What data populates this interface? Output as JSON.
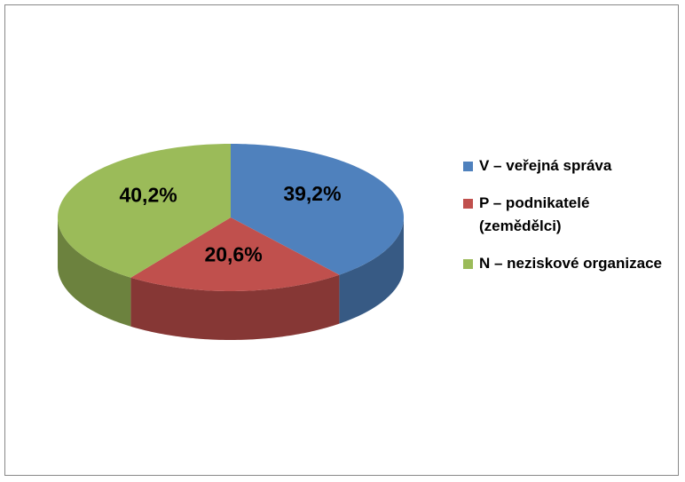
{
  "chart_data": {
    "type": "pie",
    "categories": [
      "V – veřejná správa",
      "P – podnikatelé (zemědělci)",
      "N – neziskové organizace"
    ],
    "values": [
      39.2,
      20.6,
      40.2
    ],
    "value_labels": [
      "39,2%",
      "20,6%",
      "40,2%"
    ],
    "colors": [
      "#4f81bd",
      "#c0504d",
      "#9bbb59"
    ],
    "legend": "right"
  }
}
